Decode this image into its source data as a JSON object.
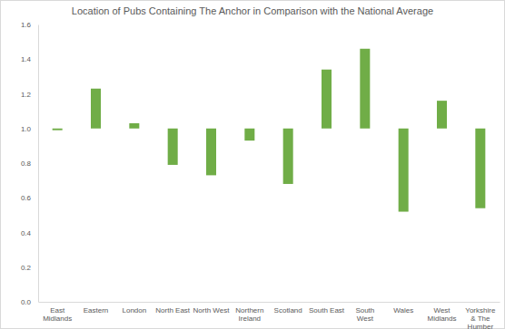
{
  "chart_data": {
    "type": "bar",
    "title": "Location of Pubs Containing The Anchor in Comparison with the National Average",
    "categories": [
      "East Midlands",
      "Eastern",
      "London",
      "North East",
      "North West",
      "Northern Ireland",
      "Scotland",
      "South East",
      "South West",
      "Wales",
      "West Midlands",
      "Yorkshire & The Humber"
    ],
    "values": [
      0.99,
      1.23,
      1.03,
      0.79,
      0.73,
      0.93,
      0.68,
      1.34,
      1.46,
      0.52,
      1.16,
      0.54
    ],
    "baseline": 1,
    "color": "#70ad47",
    "ylim": [
      0,
      1.6
    ],
    "yticks": [
      {
        "value": 0,
        "label": "0.0"
      },
      0.2,
      0.4,
      0.6,
      0.8,
      {
        "value": 1,
        "label": "1.0"
      },
      1.2,
      1.4,
      1.6
    ],
    "grid": false
  }
}
